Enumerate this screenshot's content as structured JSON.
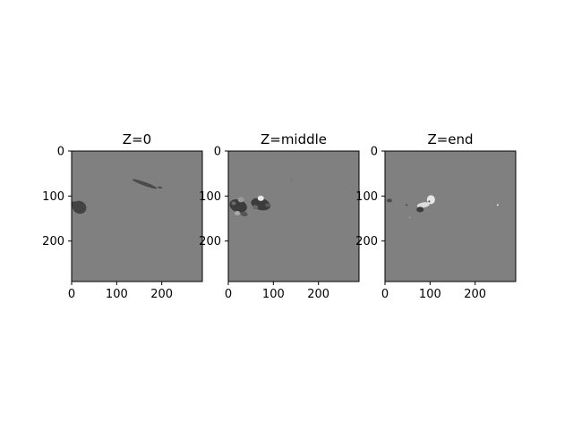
{
  "chart_data": [
    {
      "type": "heatmap",
      "title": "Z=0",
      "xlim": [
        0,
        290
      ],
      "ylim": [
        0,
        290
      ],
      "y_inverted": true,
      "xticks": [
        "0",
        "100",
        "200"
      ],
      "xtick_values": [
        0,
        100,
        200
      ],
      "yticks": [
        "0",
        "100",
        "200"
      ],
      "ytick_values": [
        0,
        100,
        200
      ],
      "background_color": "#808080",
      "regions": [
        {
          "kind": "ellipse",
          "cx": 17,
          "cy": 125,
          "rx": 16,
          "ry": 14,
          "rot": 25,
          "color": "#434343"
        },
        {
          "kind": "ellipse",
          "cx": 5,
          "cy": 118,
          "rx": 6,
          "ry": 6,
          "rot": 0,
          "color": "#434343"
        },
        {
          "kind": "ellipse",
          "cx": 162,
          "cy": 73,
          "rx": 29,
          "ry": 4,
          "rot": 20,
          "color": "#4a4a4a"
        },
        {
          "kind": "ellipse",
          "cx": 196,
          "cy": 81,
          "rx": 5,
          "ry": 2,
          "rot": 10,
          "color": "#4a4a4a"
        }
      ]
    },
    {
      "type": "heatmap",
      "title": "Z=middle",
      "xlim": [
        0,
        290
      ],
      "ylim": [
        0,
        290
      ],
      "y_inverted": true,
      "xticks": [
        "0",
        "100",
        "200"
      ],
      "xtick_values": [
        0,
        100,
        200
      ],
      "yticks": [
        "0",
        "100",
        "200"
      ],
      "ytick_values": [
        0,
        100,
        200
      ],
      "background_color": "#808080",
      "regions": [
        {
          "kind": "ellipse",
          "cx": 22,
          "cy": 122,
          "rx": 20,
          "ry": 14,
          "rot": 20,
          "color": "#3c3c3c"
        },
        {
          "kind": "ellipse",
          "cx": 28,
          "cy": 108,
          "rx": 7,
          "ry": 6,
          "rot": 0,
          "color": "#9a9a9a"
        },
        {
          "kind": "ellipse",
          "cx": 20,
          "cy": 138,
          "rx": 6,
          "ry": 5,
          "rot": 0,
          "color": "#a8a8a8"
        },
        {
          "kind": "ellipse",
          "cx": 35,
          "cy": 140,
          "rx": 8,
          "ry": 5,
          "rot": 10,
          "color": "#555555"
        },
        {
          "kind": "ellipse",
          "cx": 12,
          "cy": 116,
          "rx": 5,
          "ry": 4,
          "rot": 0,
          "color": "#6a6a6a"
        },
        {
          "kind": "ellipse",
          "cx": 72,
          "cy": 118,
          "rx": 22,
          "ry": 13,
          "rot": 15,
          "color": "#3c3c3c"
        },
        {
          "kind": "ellipse",
          "cx": 72,
          "cy": 105,
          "rx": 7,
          "ry": 6,
          "rot": 0,
          "color": "#e8e8e8"
        },
        {
          "kind": "ellipse",
          "cx": 60,
          "cy": 125,
          "rx": 6,
          "ry": 5,
          "rot": 0,
          "color": "#6a6a6a"
        },
        {
          "kind": "ellipse",
          "cx": 88,
          "cy": 120,
          "rx": 6,
          "ry": 4,
          "rot": 0,
          "color": "#5a5a5a"
        },
        {
          "kind": "ellipse",
          "cx": 140,
          "cy": 65,
          "rx": 2,
          "ry": 1,
          "rot": 0,
          "color": "#707070"
        }
      ]
    },
    {
      "type": "heatmap",
      "title": "Z=end",
      "xlim": [
        0,
        290
      ],
      "ylim": [
        0,
        290
      ],
      "y_inverted": true,
      "xticks": [
        "0",
        "100",
        "200"
      ],
      "xtick_values": [
        0,
        100,
        200
      ],
      "yticks": [
        "0",
        "100",
        "200"
      ],
      "ytick_values": [
        0,
        100,
        200
      ],
      "background_color": "#808080",
      "regions": [
        {
          "kind": "ellipse",
          "cx": 10,
          "cy": 110,
          "rx": 6,
          "ry": 4,
          "rot": 0,
          "color": "#4a4a4a"
        },
        {
          "kind": "ellipse",
          "cx": 85,
          "cy": 120,
          "rx": 14,
          "ry": 6,
          "rot": -10,
          "color": "#dcdcdc"
        },
        {
          "kind": "ellipse",
          "cx": 102,
          "cy": 108,
          "rx": 9,
          "ry": 10,
          "rot": 0,
          "color": "#e6e6e6"
        },
        {
          "kind": "ellipse",
          "cx": 98,
          "cy": 112,
          "rx": 2,
          "ry": 2,
          "rot": 0,
          "color": "#3a3a3a"
        },
        {
          "kind": "ellipse",
          "cx": 78,
          "cy": 130,
          "rx": 8,
          "ry": 6,
          "rot": 0,
          "color": "#3c3c3c"
        },
        {
          "kind": "ellipse",
          "cx": 48,
          "cy": 120,
          "rx": 3,
          "ry": 2,
          "rot": 0,
          "color": "#555555"
        },
        {
          "kind": "ellipse",
          "cx": 55,
          "cy": 148,
          "rx": 2,
          "ry": 2,
          "rot": 0,
          "color": "#9a9a9a"
        },
        {
          "kind": "ellipse",
          "cx": 250,
          "cy": 120,
          "rx": 2,
          "ry": 2,
          "rot": 0,
          "color": "#e6e6e6"
        }
      ]
    }
  ]
}
